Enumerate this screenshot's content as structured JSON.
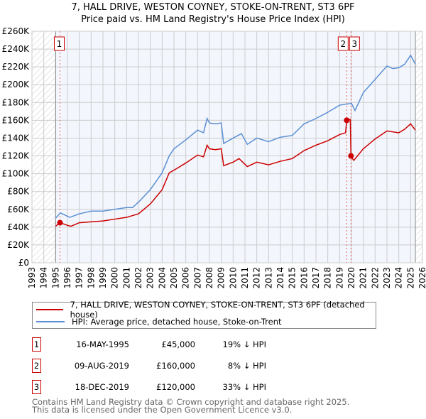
{
  "chart_data": {
    "type": "line",
    "title": "7, HALL DRIVE, WESTON COYNEY, STOKE-ON-TRENT, ST3 6PF",
    "subtitle": "Price paid vs. HM Land Registry's House Price Index (HPI)",
    "xlim": [
      1993,
      2026
    ],
    "ylim": [
      0,
      260000
    ],
    "x_ticks": [
      "1993",
      "1994",
      "1995",
      "1996",
      "1997",
      "1998",
      "1999",
      "2000",
      "2001",
      "2002",
      "2003",
      "2004",
      "2005",
      "2006",
      "2007",
      "2008",
      "2009",
      "2010",
      "2011",
      "2012",
      "2013",
      "2014",
      "2015",
      "2016",
      "2017",
      "2018",
      "2019",
      "2020",
      "2021",
      "2022",
      "2023",
      "2024",
      "2025",
      "2026"
    ],
    "y_ticks": [
      "£0",
      "£20K",
      "£40K",
      "£60K",
      "£80K",
      "£100K",
      "£120K",
      "£140K",
      "£160K",
      "£180K",
      "£200K",
      "£220K",
      "£240K",
      "£260K"
    ],
    "grid": true,
    "series": [
      {
        "name": "7, HALL DRIVE, WESTON COYNEY, STOKE-ON-TRENT, ST3 6PF (detached house)",
        "color": "#cc0000",
        "x": [
          1995.0,
          1995.37,
          1996,
          1996.3,
          1997,
          1998,
          1999,
          2000,
          2001,
          2002,
          2003,
          2004,
          2004.6,
          2005,
          2006,
          2007,
          2007.5,
          2007.8,
          2008,
          2008.5,
          2009,
          2009.2,
          2010,
          2010.5,
          2011.2,
          2012,
          2013,
          2014,
          2015,
          2016,
          2017,
          2018,
          2019,
          2019.5,
          2019.6,
          2019.9,
          2019.96,
          2020.2,
          2021,
          2022,
          2023,
          2024,
          2024.5,
          2025,
          2025.4
        ],
        "y": [
          41,
          45,
          42,
          41,
          45,
          46,
          47,
          49,
          51,
          55,
          66,
          82,
          101,
          104,
          112,
          121,
          119,
          132,
          128,
          127,
          128,
          109,
          113,
          117,
          108,
          113,
          110,
          114,
          117,
          126,
          132,
          137,
          144,
          146,
          160,
          161,
          119,
          115,
          128,
          139,
          148,
          146,
          150,
          156,
          149
        ]
      },
      {
        "name": "HPI: Average price, detached house, Stoke-on-Trent",
        "color": "#5b8fd4",
        "x": [
          1995.0,
          1995.4,
          1996.2,
          1997,
          1998,
          1999,
          2000,
          2001,
          2001.5,
          2002,
          2003,
          2004,
          2004.6,
          2005,
          2006,
          2007,
          2007.5,
          2007.8,
          2008,
          2008.5,
          2009,
          2009.2,
          2010,
          2010.7,
          2011.2,
          2012,
          2013,
          2014,
          2015,
          2016,
          2017,
          2018,
          2019,
          2020,
          2020.3,
          2021,
          2022,
          2023,
          2023.5,
          2024,
          2024.5,
          2025,
          2025.4
        ],
        "y": [
          50,
          56,
          51,
          55,
          58,
          58,
          60,
          62,
          62,
          68,
          82,
          101,
          120,
          128,
          138,
          149,
          146,
          162,
          157,
          156,
          157,
          134,
          140,
          145,
          133,
          140,
          136,
          141,
          143,
          156,
          162,
          169,
          177,
          179,
          171,
          191,
          206,
          221,
          218,
          219,
          223,
          233,
          223
        ]
      }
    ],
    "sales": [
      {
        "label": "1",
        "x": 1995.37,
        "y": 45
      },
      {
        "label": "2",
        "x": 2019.6,
        "y": 160
      },
      {
        "label": "3",
        "x": 2019.96,
        "y": 120
      }
    ],
    "data_start": 1995.0,
    "data_end": 2025.4
  },
  "table": [
    {
      "num": "1",
      "date": "16-MAY-1995",
      "price": "£45,000",
      "hpi": "19% ↓ HPI"
    },
    {
      "num": "2",
      "date": "09-AUG-2019",
      "price": "£160,000",
      "hpi": "8% ↓ HPI"
    },
    {
      "num": "3",
      "date": "18-DEC-2019",
      "price": "£120,000",
      "hpi": "33% ↓ HPI"
    }
  ],
  "footer": [
    "Contains HM Land Registry data © Crown copyright and database right 2025.",
    "This data is licensed under the Open Government Licence v3.0."
  ],
  "colors": {
    "red": "#cc0000",
    "blue": "#5b8fd4",
    "plot_bg": "#f3f6fd"
  }
}
